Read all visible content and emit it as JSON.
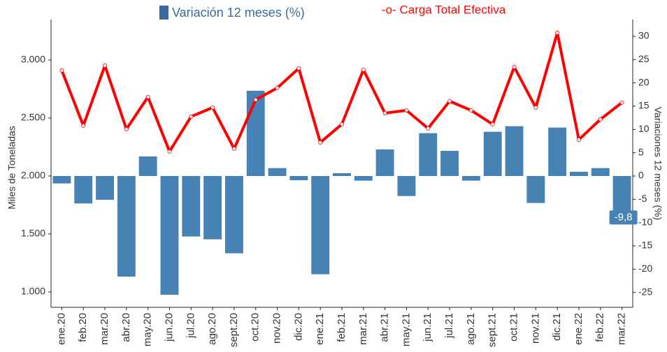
{
  "chart_data": {
    "type": "bar-line",
    "categories": [
      "ene.20",
      "feb.20",
      "mar.20",
      "abr.20",
      "may.20",
      "jun.20",
      "jul.20",
      "ago.20",
      "sept.20",
      "oct.20",
      "nov.20",
      "dic.20",
      "ene.21",
      "feb.21",
      "mar.21",
      "abr.21",
      "may.21",
      "jun.21",
      "jul.21",
      "ago.21",
      "sept.21",
      "oct.21",
      "nov.21",
      "dic.21",
      "ene.22",
      "feb.22",
      "mar.22"
    ],
    "y_label": "Miles de Toneladas",
    "y2_label": "Variaciones 12 meses (%)",
    "ylim": [
      867,
      3349
    ],
    "yticks": [
      {
        "value": 1000,
        "label": "1.000"
      },
      {
        "value": 1500,
        "label": "1.500"
      },
      {
        "value": 2000,
        "label": "2.000"
      },
      {
        "value": 2500,
        "label": "2.500"
      },
      {
        "value": 3000,
        "label": "3.000"
      }
    ],
    "y2lim": [
      -28.2,
      33.6
    ],
    "y2ticks": [
      -25,
      -20,
      -15,
      -10,
      -5,
      0,
      5,
      10,
      15,
      20,
      25,
      30
    ],
    "grid": false,
    "series": [
      {
        "name": "Variación 12 meses (%)",
        "type": "bar",
        "axis": "y2",
        "color": "#4682b4",
        "values": [
          -1.6,
          -5.9,
          -5.1,
          -21.6,
          4.2,
          -25.5,
          -13.0,
          -13.6,
          -16.6,
          18.3,
          1.7,
          -0.9,
          -21.1,
          0.6,
          -1.0,
          5.7,
          -4.3,
          9.2,
          5.4,
          -1.0,
          9.5,
          10.7,
          -5.8,
          10.4,
          0.9,
          1.7,
          -9.8
        ],
        "value_labels": [
          null,
          null,
          null,
          null,
          null,
          null,
          null,
          null,
          null,
          null,
          null,
          null,
          null,
          null,
          null,
          null,
          null,
          null,
          null,
          null,
          null,
          null,
          null,
          null,
          null,
          null,
          "-9,8"
        ]
      },
      {
        "name": "-o- Carga Total Efectiva",
        "type": "line",
        "axis": "y",
        "color": "#ff0000",
        "values": [
          2910,
          2434,
          2952,
          2404,
          2681,
          2211,
          2512,
          2590,
          2235,
          2657,
          2759,
          2928,
          2289,
          2446,
          2916,
          2542,
          2566,
          2410,
          2645,
          2566,
          2446,
          2940,
          2590,
          3235,
          2313,
          2488,
          2633
        ]
      }
    ]
  }
}
